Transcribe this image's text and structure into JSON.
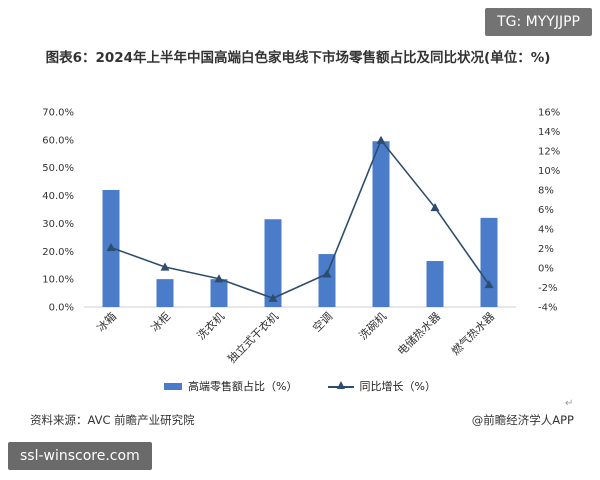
{
  "badges": {
    "tg": "TG: MYYJJPP",
    "site": "ssl-winscore.com"
  },
  "title": "图表6：2024年上半年中国高端白色家电线下市场零售额占比及同比状况(单位：%)",
  "footer": {
    "source": "资料来源：AVC 前瞻产业研究院",
    "credit": "@前瞻经济学人APP"
  },
  "return_mark": "↵",
  "colors": {
    "bar": "#4a7cc9",
    "line": "#2e4d6e"
  },
  "chart_data": {
    "type": "bar",
    "categories": [
      "冰箱",
      "冰柜",
      "洗衣机",
      "独立式干衣机",
      "空调",
      "洗碗机",
      "电储热水器",
      "燃气热水器"
    ],
    "series": [
      {
        "name": "高端零售额占比（%）",
        "type": "bar",
        "axis": "left",
        "values": [
          42.0,
          10.0,
          10.0,
          31.5,
          19.0,
          59.5,
          16.5,
          32.0
        ]
      },
      {
        "name": "同比增长（%）",
        "type": "line",
        "axis": "right",
        "values": [
          2.1,
          0.1,
          -1.1,
          -3.1,
          -0.6,
          13.1,
          6.2,
          -1.7
        ]
      }
    ],
    "y_left": {
      "ylim": [
        0,
        70
      ],
      "ticks": [
        "0.0%",
        "10.0%",
        "20.0%",
        "30.0%",
        "40.0%",
        "50.0%",
        "60.0%",
        "70.0%"
      ]
    },
    "y_right": {
      "ylim": [
        -4,
        16
      ],
      "ticks": [
        "-4%",
        "-2%",
        "0%",
        "2%",
        "4%",
        "6%",
        "8%",
        "10%",
        "12%",
        "14%",
        "16%"
      ]
    },
    "legend_position": "bottom",
    "grid": false
  }
}
